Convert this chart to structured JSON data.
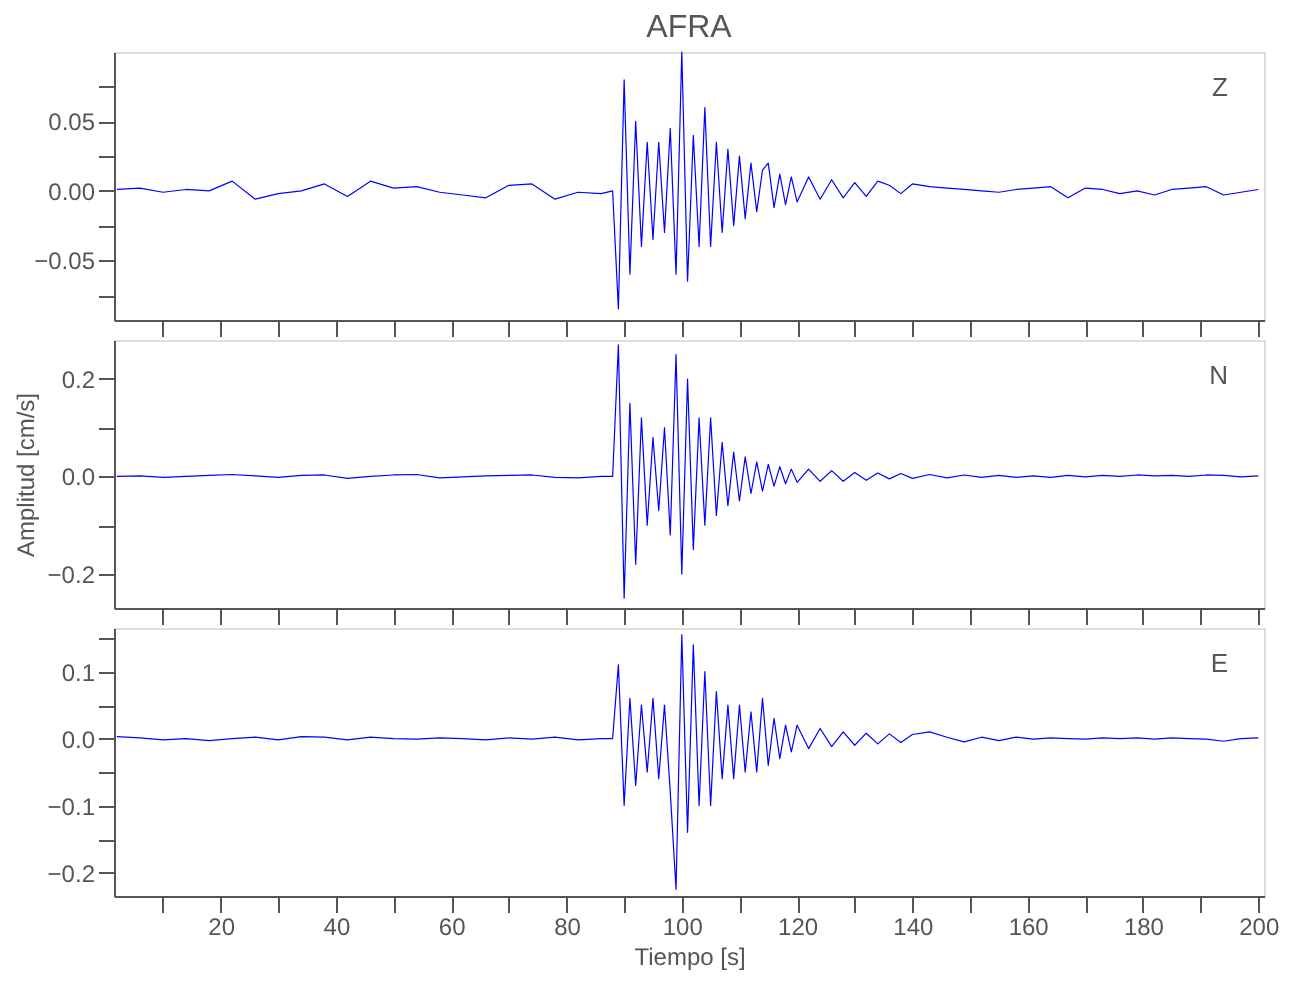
{
  "chart_data": [
    {
      "type": "line",
      "title": "AFRA",
      "annotations": [
        "Z"
      ],
      "tick_labels": "y",
      "grid": false,
      "legend": false,
      "x": [
        2,
        6,
        10,
        14,
        18,
        22,
        26,
        30,
        34,
        38,
        42,
        46,
        50,
        54,
        58,
        62,
        66,
        70,
        74,
        78,
        82,
        86,
        88,
        89,
        90,
        91,
        92,
        93,
        94,
        95,
        96,
        97,
        98,
        99,
        100,
        101,
        102,
        103,
        104,
        105,
        106,
        107,
        108,
        109,
        110,
        111,
        112,
        113,
        114,
        115,
        116,
        117,
        118,
        119,
        120,
        122,
        124,
        126,
        128,
        130,
        132,
        134,
        136,
        138,
        140,
        143,
        146,
        149,
        152,
        155,
        158,
        161,
        164,
        167,
        170,
        173,
        176,
        179,
        182,
        185,
        188,
        191,
        194,
        197,
        200
      ],
      "series": [
        {
          "color": "#0000ff",
          "values": [
            0.001,
            0.002,
            -0.001,
            0.001,
            0.0,
            0.007,
            -0.006,
            -0.002,
            0.0,
            0.005,
            -0.004,
            0.007,
            0.002,
            0.003,
            -0.001,
            -0.003,
            -0.005,
            0.004,
            0.005,
            -0.006,
            -0.001,
            -0.002,
            0.0,
            -0.085,
            0.08,
            -0.06,
            0.05,
            -0.04,
            0.035,
            -0.035,
            0.035,
            -0.03,
            0.045,
            -0.06,
            0.1,
            -0.065,
            0.04,
            -0.04,
            0.06,
            -0.04,
            0.035,
            -0.03,
            0.03,
            -0.025,
            0.025,
            -0.02,
            0.02,
            -0.015,
            0.015,
            0.02,
            -0.012,
            0.012,
            -0.01,
            0.01,
            -0.008,
            0.01,
            -0.006,
            0.008,
            -0.005,
            0.006,
            -0.004,
            0.007,
            0.004,
            -0.002,
            0.005,
            0.003,
            0.002,
            0.001,
            0.0,
            -0.001,
            0.001,
            0.002,
            0.003,
            -0.005,
            0.002,
            0.001,
            -0.002,
            0.0,
            -0.003,
            0.001,
            0.002,
            0.003,
            -0.003,
            -0.001,
            0.001
          ]
        }
      ],
      "xlim": [
        1.5,
        201
      ],
      "ylim": [
        -0.093,
        0.1
      ],
      "xticks": [
        {
          "value": 10,
          "label": null
        },
        20,
        {
          "value": 30,
          "label": null
        },
        40,
        {
          "value": 50,
          "label": null
        },
        60,
        {
          "value": 70,
          "label": null
        },
        80,
        {
          "value": 90,
          "label": null
        },
        100,
        {
          "value": 110,
          "label": null
        },
        120,
        {
          "value": 130,
          "label": null
        },
        140,
        {
          "value": 150,
          "label": null
        },
        160,
        {
          "value": 170,
          "label": null
        },
        180,
        {
          "value": 190,
          "label": null
        },
        200
      ],
      "yticks": [
        {
          "value": -0.075,
          "label": null
        },
        {
          "value": -0.05,
          "label": "−0.05"
        },
        {
          "value": -0.025,
          "label": null
        },
        {
          "value": 0,
          "label": "0.00"
        },
        {
          "value": 0.025,
          "label": null
        },
        0.05,
        {
          "value": 0.075,
          "label": null
        }
      ]
    },
    {
      "type": "line",
      "ylabel": "Amplitud  [cm/s]",
      "annotations": [
        "N"
      ],
      "tick_labels": "y",
      "grid": false,
      "legend": false,
      "x": [
        2,
        6,
        10,
        14,
        18,
        22,
        26,
        30,
        34,
        38,
        42,
        46,
        50,
        54,
        58,
        62,
        66,
        70,
        74,
        78,
        82,
        86,
        88,
        89,
        90,
        91,
        92,
        93,
        94,
        95,
        96,
        97,
        98,
        99,
        100,
        101,
        102,
        103,
        104,
        105,
        106,
        107,
        108,
        109,
        110,
        111,
        112,
        113,
        114,
        115,
        116,
        117,
        118,
        119,
        120,
        122,
        124,
        126,
        128,
        130,
        132,
        134,
        136,
        138,
        140,
        143,
        146,
        149,
        152,
        155,
        158,
        161,
        164,
        167,
        170,
        173,
        176,
        179,
        182,
        185,
        188,
        191,
        194,
        197,
        200
      ],
      "series": [
        {
          "color": "#0000ff",
          "values": [
            0.0,
            0.001,
            -0.002,
            0.0,
            0.002,
            0.004,
            0.001,
            -0.002,
            0.002,
            0.003,
            -0.004,
            0.0,
            0.003,
            0.004,
            -0.003,
            -0.001,
            0.001,
            0.002,
            0.003,
            -0.002,
            -0.003,
            0.0,
            0.0,
            0.27,
            -0.25,
            0.15,
            -0.18,
            0.12,
            -0.1,
            0.08,
            -0.07,
            0.1,
            -0.12,
            0.25,
            -0.2,
            0.2,
            -0.15,
            0.12,
            -0.1,
            0.12,
            -0.08,
            0.07,
            -0.06,
            0.05,
            -0.05,
            0.04,
            -0.035,
            0.03,
            -0.03,
            0.025,
            -0.02,
            0.02,
            -0.015,
            0.015,
            -0.012,
            0.015,
            -0.01,
            0.012,
            -0.01,
            0.008,
            -0.008,
            0.007,
            -0.005,
            0.006,
            -0.004,
            0.004,
            -0.003,
            0.003,
            -0.002,
            0.002,
            -0.002,
            0.001,
            -0.002,
            0.002,
            -0.001,
            0.002,
            0.0,
            0.003,
            0.001,
            0.002,
            0.0,
            0.003,
            0.002,
            -0.001,
            0.001
          ]
        }
      ],
      "xlim": [
        1.5,
        201
      ],
      "ylim": [
        -0.27,
        0.28
      ],
      "xticks": [
        {
          "value": 10,
          "label": null
        },
        20,
        {
          "value": 30,
          "label": null
        },
        40,
        {
          "value": 50,
          "label": null
        },
        60,
        {
          "value": 70,
          "label": null
        },
        80,
        {
          "value": 90,
          "label": null
        },
        100,
        {
          "value": 110,
          "label": null
        },
        120,
        {
          "value": 130,
          "label": null
        },
        140,
        {
          "value": 150,
          "label": null
        },
        160,
        {
          "value": 170,
          "label": null
        },
        180,
        {
          "value": 190,
          "label": null
        },
        200
      ],
      "yticks": [
        {
          "value": -0.2,
          "label": "−0.2"
        },
        {
          "value": -0.1,
          "label": null
        },
        {
          "value": 0,
          "label": "0.0"
        },
        {
          "value": 0.1,
          "label": null
        },
        0.2
      ]
    },
    {
      "type": "line",
      "xlabel": "Tiempo  [s]",
      "annotations": [
        "E"
      ],
      "grid": false,
      "legend": false,
      "x": [
        2,
        6,
        10,
        14,
        18,
        22,
        26,
        30,
        34,
        38,
        42,
        46,
        50,
        54,
        58,
        62,
        66,
        70,
        74,
        78,
        82,
        86,
        88,
        89,
        90,
        91,
        92,
        93,
        94,
        95,
        96,
        97,
        98,
        99,
        100,
        101,
        102,
        103,
        104,
        105,
        106,
        107,
        108,
        109,
        110,
        111,
        112,
        113,
        114,
        115,
        116,
        117,
        118,
        119,
        120,
        122,
        124,
        126,
        128,
        130,
        132,
        134,
        136,
        138,
        140,
        143,
        146,
        149,
        152,
        155,
        158,
        161,
        164,
        167,
        170,
        173,
        176,
        179,
        182,
        185,
        188,
        191,
        194,
        197,
        200
      ],
      "series": [
        {
          "color": "#0000ff",
          "values": [
            0.003,
            0.001,
            -0.002,
            0.0,
            -0.003,
            0.0,
            0.002,
            -0.002,
            0.003,
            0.002,
            -0.002,
            0.002,
            0.0,
            -0.001,
            0.001,
            0.0,
            -0.002,
            0.001,
            -0.001,
            0.002,
            -0.002,
            0.0,
            0.0,
            0.11,
            -0.1,
            0.06,
            -0.07,
            0.05,
            -0.05,
            0.06,
            -0.06,
            0.05,
            -0.08,
            -0.225,
            0.155,
            -0.14,
            0.14,
            -0.1,
            0.1,
            -0.1,
            0.07,
            -0.06,
            0.05,
            -0.06,
            0.05,
            -0.05,
            0.04,
            -0.05,
            0.06,
            -0.04,
            0.03,
            -0.03,
            0.02,
            -0.02,
            0.02,
            -0.015,
            0.015,
            -0.012,
            0.01,
            -0.01,
            0.008,
            -0.008,
            0.007,
            -0.006,
            0.006,
            0.01,
            0.002,
            -0.005,
            0.002,
            -0.003,
            0.002,
            -0.001,
            0.001,
            0.0,
            -0.001,
            0.001,
            0.0,
            0.001,
            -0.001,
            0.001,
            0.0,
            -0.001,
            -0.004,
            0.0,
            0.001
          ]
        }
      ],
      "xlim": [
        1.5,
        201
      ],
      "ylim": [
        -0.235,
        0.165
      ],
      "xticks": [
        {
          "value": 10,
          "label": null
        },
        20,
        {
          "value": 30,
          "label": null
        },
        40,
        {
          "value": 50,
          "label": null
        },
        60,
        {
          "value": 70,
          "label": null
        },
        80,
        {
          "value": 90,
          "label": null
        },
        100,
        {
          "value": 110,
          "label": null
        },
        120,
        {
          "value": 130,
          "label": null
        },
        140,
        {
          "value": 150,
          "label": null
        },
        160,
        {
          "value": 170,
          "label": null
        },
        180,
        {
          "value": 190,
          "label": null
        },
        200
      ],
      "yticks": [
        {
          "value": -0.2,
          "label": "−0.2"
        },
        {
          "value": -0.15,
          "label": null
        },
        {
          "value": -0.1,
          "label": "−0.1"
        },
        {
          "value": -0.05,
          "label": null
        },
        {
          "value": 0,
          "label": "0.0"
        },
        {
          "value": 0.05,
          "label": null
        },
        0.1,
        {
          "value": 0.15,
          "label": null
        }
      ]
    }
  ]
}
